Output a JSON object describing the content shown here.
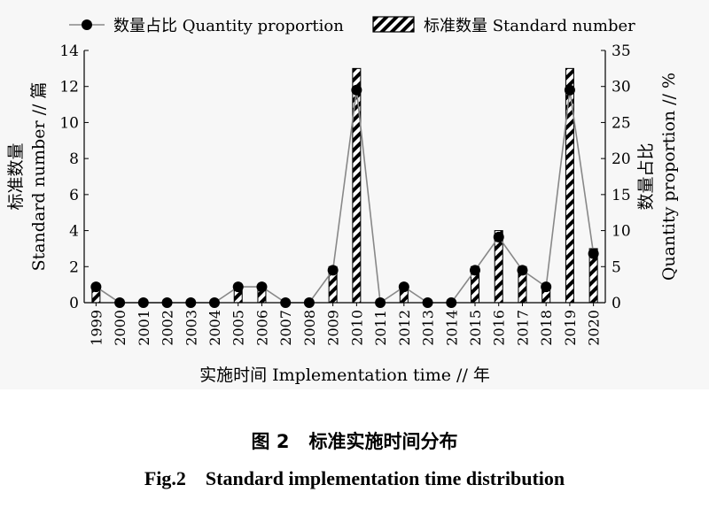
{
  "chart_data": {
    "type": "bar",
    "categories": [
      "1999",
      "2000",
      "2001",
      "2002",
      "2003",
      "2004",
      "2005",
      "2006",
      "2007",
      "2008",
      "2009",
      "2010",
      "2011",
      "2012",
      "2013",
      "2014",
      "2015",
      "2016",
      "2017",
      "2018",
      "2019",
      "2020"
    ],
    "series": [
      {
        "name": "标准数量 Standard number",
        "type": "bar",
        "axis": "left",
        "values": [
          1,
          0,
          0,
          0,
          0,
          0,
          1,
          1,
          0,
          0,
          2,
          13,
          0,
          1,
          0,
          0,
          2,
          4,
          2,
          1,
          13,
          3
        ]
      },
      {
        "name": "数量占比 Quantity proportion",
        "type": "line",
        "axis": "right",
        "values": [
          2.2,
          0,
          0,
          0,
          0,
          0,
          2.2,
          2.2,
          0,
          0,
          4.5,
          29.5,
          0,
          2.2,
          0,
          0,
          4.5,
          9.1,
          4.5,
          2.2,
          29.5,
          6.8
        ]
      }
    ],
    "xlabel": "实施时间 Implementation time // 年",
    "ylabel_left": [
      "标准数量",
      "Standard number // 篇"
    ],
    "ylabel_right": [
      "数量占比",
      "Quantity proportion // %"
    ],
    "ylim_left": [
      0,
      14
    ],
    "yticks_left": [
      0,
      2,
      4,
      6,
      8,
      10,
      12,
      14
    ],
    "ylim_right": [
      0,
      35
    ],
    "yticks_right": [
      0,
      5,
      10,
      15,
      20,
      25,
      30,
      35
    ],
    "grid": false,
    "legend_position": "top"
  },
  "caption": {
    "figure_cn": "图 2",
    "title_cn": "标准实施时间分布",
    "figure_en": "Fig.2",
    "title_en": "Standard implementation time distribution"
  },
  "colors": {
    "line": "#888888",
    "marker": "#000000",
    "bar_stripe": "#000000",
    "bar_fill": "#ffffff"
  }
}
